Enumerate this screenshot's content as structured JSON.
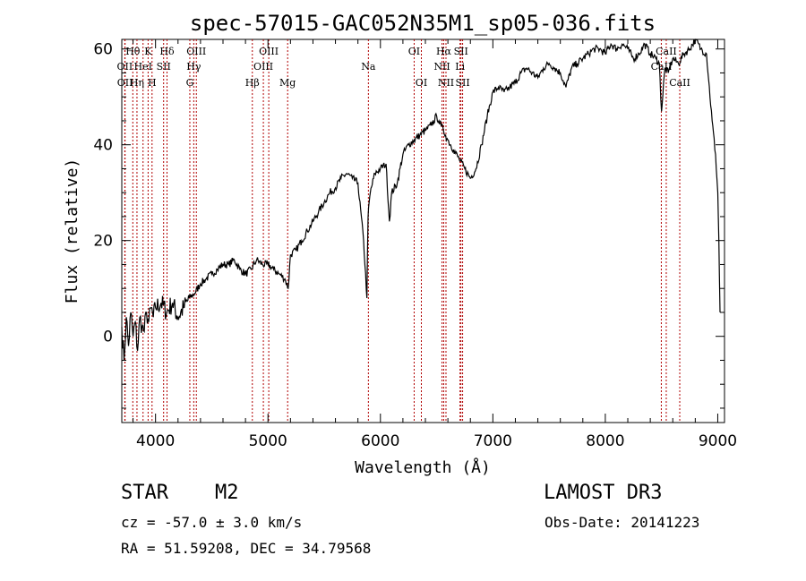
{
  "chart_data": {
    "type": "line",
    "title": "spec-57015-GAC052N35M1_sp05-036.fits",
    "xlabel": "Wavelength (Å)",
    "ylabel": "Flux (relative)",
    "xlim": [
      3700,
      9060
    ],
    "ylim": [
      -18,
      62
    ],
    "xticks": [
      4000,
      5000,
      6000,
      7000,
      8000,
      9000
    ],
    "yticks": [
      0,
      20,
      40,
      60
    ],
    "series": [
      {
        "name": "spectrum",
        "x": [
          3700,
          3720,
          3740,
          3760,
          3780,
          3800,
          3820,
          3840,
          3860,
          3880,
          3900,
          3920,
          3940,
          3960,
          3980,
          4000,
          4050,
          4100,
          4150,
          4200,
          4250,
          4300,
          4350,
          4400,
          4450,
          4500,
          4550,
          4600,
          4650,
          4700,
          4750,
          4800,
          4850,
          4900,
          4950,
          5000,
          5050,
          5100,
          5150,
          5180,
          5200,
          5250,
          5300,
          5350,
          5400,
          5450,
          5500,
          5550,
          5600,
          5650,
          5700,
          5750,
          5800,
          5850,
          5880,
          5890,
          5900,
          5910,
          5950,
          6000,
          6050,
          6080,
          6100,
          6150,
          6200,
          6250,
          6300,
          6350,
          6400,
          6450,
          6500,
          6520,
          6540,
          6560,
          6580,
          6600,
          6650,
          6700,
          6750,
          6800,
          6850,
          6900,
          6950,
          7000,
          7050,
          7100,
          7150,
          7200,
          7250,
          7300,
          7350,
          7400,
          7450,
          7500,
          7550,
          7600,
          7650,
          7700,
          7750,
          7800,
          7850,
          7900,
          7950,
          8000,
          8050,
          8100,
          8150,
          8200,
          8250,
          8300,
          8350,
          8400,
          8450,
          8480,
          8500,
          8530,
          8560,
          8600,
          8650,
          8700,
          8750,
          8800,
          8850,
          8900,
          8950,
          8980,
          9000,
          9010,
          9020
        ],
        "y": [
          2,
          -5,
          4,
          -2,
          5,
          0,
          3,
          -3,
          4,
          2,
          1,
          5,
          3,
          6,
          4,
          6,
          7,
          5,
          7,
          4,
          6,
          8,
          9,
          11,
          12,
          13,
          14,
          15,
          15,
          16,
          14,
          13,
          14,
          16,
          15,
          15,
          14,
          13,
          12,
          10,
          17,
          18,
          20,
          22,
          24,
          26,
          28,
          30,
          31,
          33,
          34,
          33,
          32,
          20,
          8,
          25,
          28,
          30,
          34,
          35,
          36,
          24,
          30,
          32,
          38,
          40,
          41,
          42,
          43,
          44,
          46,
          45,
          44,
          43,
          42,
          41,
          39,
          37,
          35,
          33,
          35,
          40,
          46,
          51,
          52,
          51,
          52,
          53,
          55,
          56,
          55,
          54,
          56,
          57,
          56,
          55,
          52,
          56,
          57,
          58,
          59,
          60,
          60,
          59,
          61,
          60,
          61,
          60,
          58,
          59,
          61,
          59,
          58,
          57,
          47,
          56,
          55,
          58,
          57,
          59,
          60,
          62,
          60,
          59,
          45,
          38,
          30,
          20,
          5
        ],
        "color": "#000000"
      }
    ],
    "lines": [
      {
        "label": "Hθ",
        "wave": 3798
      },
      {
        "label": "OII",
        "wave": 3727
      },
      {
        "label": "OII",
        "wave": 3729
      },
      {
        "label": "K",
        "wave": 3934
      },
      {
        "label": "HeI",
        "wave": 3889
      },
      {
        "label": "Hη",
        "wave": 3835
      },
      {
        "label": "H",
        "wave": 3969
      },
      {
        "label": "Hδ",
        "wave": 4102
      },
      {
        "label": "SII",
        "wave": 4072
      },
      {
        "label": "OIII",
        "wave": 4363
      },
      {
        "label": "Hγ",
        "wave": 4340
      },
      {
        "label": "G",
        "wave": 4305
      },
      {
        "label": "Hβ",
        "wave": 4861
      },
      {
        "label": "OIII",
        "wave": 5007
      },
      {
        "label": "OIII",
        "wave": 4959
      },
      {
        "label": "Mg",
        "wave": 5175
      },
      {
        "label": "Na",
        "wave": 5893
      },
      {
        "label": "OI",
        "wave": 6300
      },
      {
        "label": "OI",
        "wave": 6364
      },
      {
        "label": "Hα",
        "wave": 6563
      },
      {
        "label": "NII",
        "wave": 6548
      },
      {
        "label": "NII",
        "wave": 6583
      },
      {
        "label": "SII",
        "wave": 6716
      },
      {
        "label": "Li",
        "wave": 6708
      },
      {
        "label": "SII",
        "wave": 6731
      },
      {
        "label": "CaII",
        "wave": 8498
      },
      {
        "label": "CaII",
        "wave": 8542
      },
      {
        "label": "CaII",
        "wave": 8662
      }
    ],
    "line_label_rows": [
      [
        {
          "text": "Hθ",
          "wave": 3798
        },
        {
          "text": "K",
          "wave": 3934
        },
        {
          "text": "Hδ",
          "wave": 4102
        },
        {
          "text": "OIII",
          "wave": 4363
        },
        {
          "text": "OIII",
          "wave": 5007
        },
        {
          "text": "OI",
          "wave": 6300
        },
        {
          "text": "Hα",
          "wave": 6563
        },
        {
          "text": "SII",
          "wave": 6716
        },
        {
          "text": "CaII",
          "wave": 8542
        }
      ],
      [
        {
          "text": "OII",
          "wave": 3727
        },
        {
          "text": "HeI",
          "wave": 3889
        },
        {
          "text": "SII",
          "wave": 4072
        },
        {
          "text": "Hγ",
          "wave": 4340
        },
        {
          "text": "OIII",
          "wave": 4959
        },
        {
          "text": "Na",
          "wave": 5893
        },
        {
          "text": "NII",
          "wave": 6548
        },
        {
          "text": "Li",
          "wave": 6708
        },
        {
          "text": "CaII",
          "wave": 8498
        }
      ],
      [
        {
          "text": "OII",
          "wave": 3729
        },
        {
          "text": "Hη",
          "wave": 3835
        },
        {
          "text": "H",
          "wave": 3969
        },
        {
          "text": "G",
          "wave": 4305
        },
        {
          "text": "Hβ",
          "wave": 4861
        },
        {
          "text": "Mg",
          "wave": 5175
        },
        {
          "text": "OI",
          "wave": 6364
        },
        {
          "text": "NII",
          "wave": 6583
        },
        {
          "text": "SII",
          "wave": 6731
        },
        {
          "text": "CaII",
          "wave": 8662
        }
      ]
    ],
    "line_color": "#b00000"
  },
  "info": {
    "object_class": "STAR",
    "subclass": "M2",
    "survey": "LAMOST DR3",
    "cz": "cz = -57.0 ± 3.0 km/s",
    "obs_date": "Obs-Date: 20141223",
    "radec": "RA =  51.59208, DEC =  34.79568"
  }
}
